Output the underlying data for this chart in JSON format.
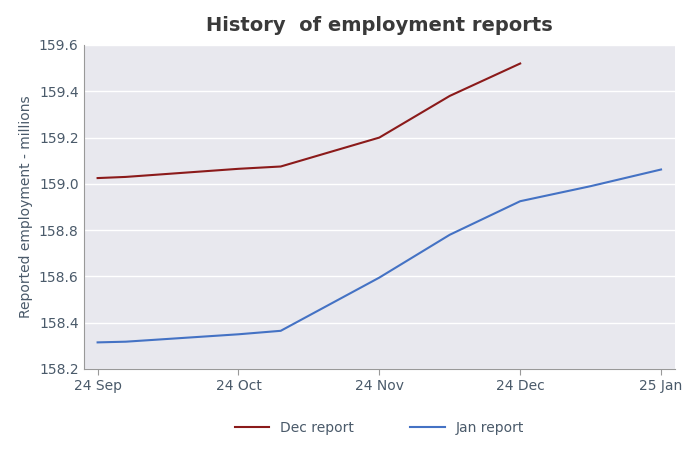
{
  "title": "History  of employment reports",
  "ylabel": "Reported employment - millions",
  "fig_background": "#ffffff",
  "plot_background": "#e8e8ee",
  "x_labels": [
    "24 Sep",
    "24 Oct",
    "24 Nov",
    "24 Dec",
    "25 Jan"
  ],
  "x_positions": [
    0,
    1,
    2,
    3,
    4
  ],
  "dec_report": {
    "label": "Dec report",
    "color": "#8b1a1a",
    "x": [
      0,
      0.2,
      1.0,
      1.3,
      2.0,
      2.5,
      3.0
    ],
    "y": [
      159.025,
      159.03,
      159.065,
      159.075,
      159.2,
      159.38,
      159.52
    ]
  },
  "jan_report": {
    "label": "Jan report",
    "color": "#4472c4",
    "x": [
      0,
      0.2,
      1.0,
      1.3,
      2.0,
      2.5,
      3.0,
      3.5,
      4.0
    ],
    "y": [
      158.315,
      158.318,
      158.35,
      158.365,
      158.595,
      158.78,
      158.925,
      158.99,
      159.062
    ]
  },
  "ylim": [
    158.2,
    159.6
  ],
  "yticks": [
    158.2,
    158.4,
    158.6,
    158.8,
    159.0,
    159.2,
    159.4,
    159.6
  ],
  "title_color": "#3a3a3a",
  "tick_label_color": "#4a5a6a",
  "axis_color": "#999999",
  "grid_color": "#ffffff",
  "legend_fontsize": 10,
  "title_fontsize": 14,
  "tick_fontsize": 10,
  "ylabel_fontsize": 10
}
